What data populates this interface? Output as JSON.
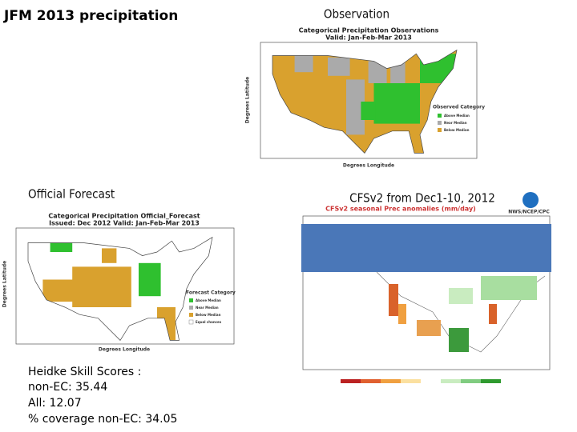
{
  "title": "JFM 2013 precipitation",
  "observation": {
    "caption": "Observation",
    "map_title": "Categorical Precipitation Observations",
    "map_subtitle": "Valid: Jan-Feb-Mar 2013",
    "y_label": "Degrees Latitude",
    "x_label": "Degrees Longitude",
    "legend_title": "Observed Category",
    "legend": [
      "Above Median",
      "Near Median",
      "Below Median"
    ]
  },
  "official": {
    "caption": "Official Forecast",
    "map_title": "Categorical Precipitation Official_Forecast",
    "map_subtitle": "Issued: Dec 2012 Valid: Jan-Feb-Mar 2013",
    "y_label": "Degrees Latitude",
    "x_label": "Degrees Longitude",
    "legend_title": "Forecast Category",
    "legend": [
      "Above Median",
      "Near Median",
      "Below Median",
      "Equal chances"
    ]
  },
  "cfsv2": {
    "caption": "CFSv2 from Dec1-10, 2012",
    "map_title": "CFSv2 seasonal Prec anomalies (mm/day)",
    "credit": "NWS/NCEP/CPC"
  },
  "skill": {
    "heading": "Heidke Skill Scores :",
    "lines": [
      "non-EC: 35.44",
      "All: 12.07",
      "% coverage non-EC: 34.05"
    ]
  }
}
